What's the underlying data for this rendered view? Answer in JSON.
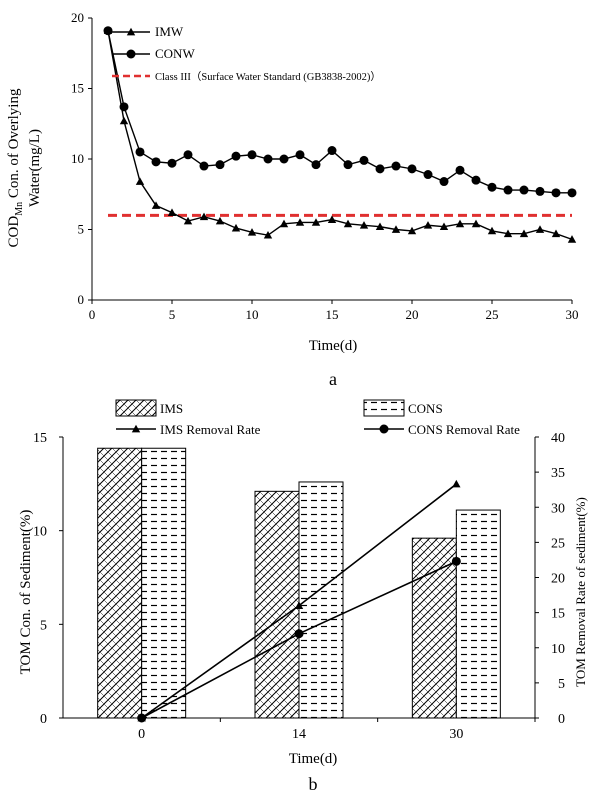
{
  "chart_data": [
    {
      "type": "line",
      "panel_label": "a",
      "xlabel": "Time(d)",
      "ylabel_line1": "COD",
      "ylabel_sub": "Mn",
      "ylabel_rest": " Con. of Overlying",
      "ylabel_line2": "Water(mg/L)",
      "xlim": [
        0,
        30
      ],
      "ylim": [
        0,
        20
      ],
      "xticks": [
        0,
        5,
        10,
        15,
        20,
        25,
        30
      ],
      "yticks": [
        0,
        5,
        10,
        15,
        20
      ],
      "legend_position": "top-left",
      "reference_line": {
        "name": "Class III（Surface Water Standard (GB3838-2002)）",
        "y": 6,
        "color": "#e03030"
      },
      "x": [
        1,
        2,
        3,
        4,
        5,
        6,
        7,
        8,
        9,
        10,
        11,
        12,
        13,
        14,
        15,
        16,
        17,
        18,
        19,
        20,
        21,
        22,
        23,
        24,
        25,
        26,
        27,
        28,
        29,
        30
      ],
      "series": [
        {
          "name": "IMW",
          "marker": "triangle",
          "color": "#000000",
          "values": [
            19.1,
            12.7,
            8.4,
            6.7,
            6.2,
            5.6,
            5.9,
            5.6,
            5.1,
            4.8,
            4.6,
            5.4,
            5.5,
            5.5,
            5.7,
            5.4,
            5.3,
            5.2,
            5.0,
            4.9,
            5.3,
            5.2,
            5.4,
            5.4,
            4.9,
            4.7,
            4.7,
            5.0,
            4.7,
            4.3
          ]
        },
        {
          "name": "CONW",
          "marker": "circle",
          "color": "#000000",
          "values": [
            19.1,
            13.7,
            10.5,
            9.8,
            9.7,
            10.3,
            9.5,
            9.6,
            10.2,
            10.3,
            10.0,
            10.0,
            10.3,
            9.6,
            10.6,
            9.6,
            9.9,
            9.3,
            9.5,
            9.3,
            8.9,
            8.4,
            9.2,
            8.5,
            8.0,
            7.8,
            7.8,
            7.7,
            7.6,
            7.6
          ]
        }
      ]
    },
    {
      "type": "bar",
      "panel_label": "b",
      "xlabel": "Time(d)",
      "ylabel": "TOM Con. of Sediment(%)",
      "ylabel_right": "TOM Removal Rate of sediment(%)",
      "categories": [
        "0",
        "14",
        "30"
      ],
      "ylim": [
        0,
        15
      ],
      "ylim_right": [
        0,
        40
      ],
      "yticks": [
        0,
        5,
        10,
        15
      ],
      "yticks_right": [
        0,
        5,
        10,
        15,
        20,
        25,
        30,
        35,
        40
      ],
      "legend_position": "top",
      "bar_series": [
        {
          "name": "IMS",
          "pattern": "diagonal-hatch",
          "values": [
            14.4,
            12.1,
            9.6
          ]
        },
        {
          "name": "CONS",
          "pattern": "horizontal-dash",
          "values": [
            14.4,
            12.6,
            11.1
          ]
        }
      ],
      "line_series": [
        {
          "name": "IMS Removal Rate",
          "marker": "triangle",
          "axis": "right",
          "values": [
            0,
            16,
            33.3
          ]
        },
        {
          "name": "CONS Removal Rate",
          "marker": "circle",
          "axis": "right",
          "values": [
            0,
            12,
            22.3
          ]
        }
      ]
    }
  ]
}
